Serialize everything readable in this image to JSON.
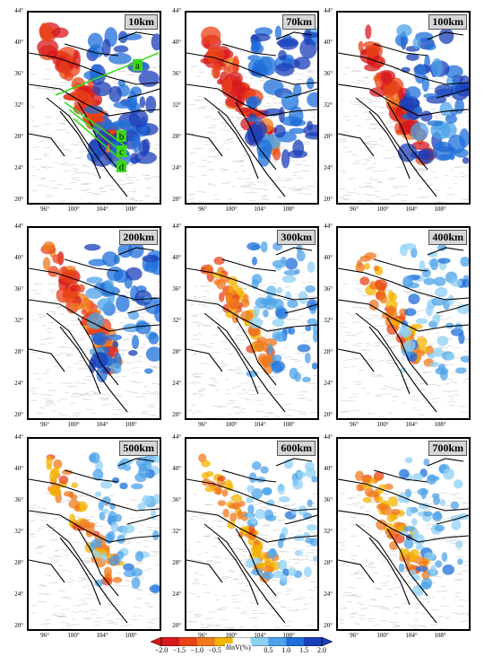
{
  "panels": [
    {
      "depth": "10km"
    },
    {
      "depth": "70km"
    },
    {
      "depth": "100km"
    },
    {
      "depth": "200km"
    },
    {
      "depth": "300km"
    },
    {
      "depth": "400km"
    },
    {
      "depth": "500km"
    },
    {
      "depth": "600km"
    },
    {
      "depth": "700km"
    }
  ],
  "lat_ticks": [
    "44°",
    "40°",
    "36°",
    "32°",
    "28°",
    "24°",
    "20°"
  ],
  "lon_ticks": [
    "96°",
    "100°",
    "104°",
    "108°"
  ],
  "profile_labels": {
    "a": "a",
    "b": "b",
    "c": "c",
    "d": "d"
  },
  "colorbar": {
    "title": "δlnV(%)",
    "ticks": [
      "−2.0",
      "−1.5",
      "−1.0",
      "−0.5",
      "0.5",
      "1.0",
      "1.5",
      "2.0"
    ],
    "colors": [
      "#d7191c",
      "#e8431a",
      "#f07a1e",
      "#f4b400",
      "#ffffff",
      "#8fd0f5",
      "#4ea3e8",
      "#1f6fd9",
      "#1b3fb8"
    ]
  }
}
